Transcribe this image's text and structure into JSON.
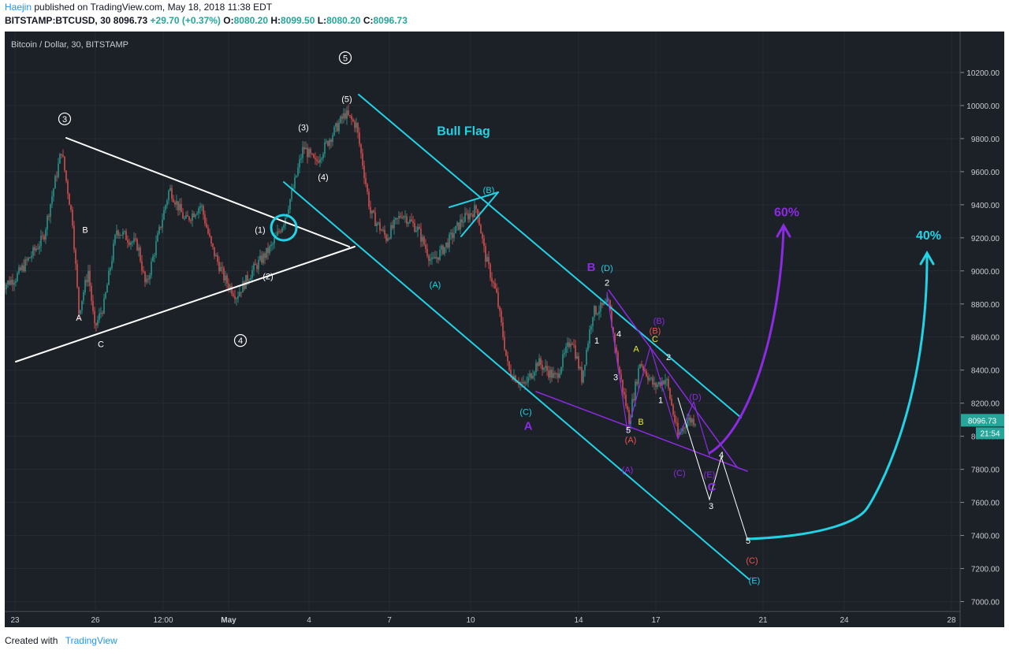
{
  "header": {
    "author": "Haejin",
    "published": "published on TradingView.com, May 18, 2018 11:38 EDT",
    "symbol": "BITSTAMP:BTCUSD, 30",
    "last": "8096.73",
    "change": "+29.70 (+0.37%)",
    "open": "8080.20",
    "high": "8099.50",
    "low": "8080.20",
    "close": "8096.73"
  },
  "footer": {
    "created_with": "Created with",
    "brand": "TradingView"
  },
  "colors": {
    "background": "#1c2027",
    "cyan": "#22d3e6",
    "purple": "#8b2be2",
    "up": "#26a69a",
    "down": "#ef5350"
  },
  "chart_data": {
    "type": "candlestick",
    "title": "Bitcoin / Dollar, 30, BITSTAMP",
    "ylim": [
      6950,
      10400
    ],
    "y_ticks": [
      7000,
      7200,
      7400,
      7600,
      7800,
      8000,
      8200,
      8400,
      8600,
      8800,
      9000,
      9200,
      9400,
      9600,
      9800,
      10000,
      10200
    ],
    "x_tick_labels": [
      "23",
      "26",
      "12:00",
      "May",
      "4",
      "7",
      "10",
      "14",
      "17",
      "21",
      "24",
      "28"
    ],
    "last_price_label": "8096.73",
    "countdown_label": "21:54",
    "price_path": [
      [
        0,
        8900
      ],
      [
        20,
        8960
      ],
      [
        55,
        9200
      ],
      [
        78,
        9730
      ],
      [
        92,
        9300
      ],
      [
        100,
        8750
      ],
      [
        112,
        9000
      ],
      [
        120,
        8650
      ],
      [
        132,
        8800
      ],
      [
        148,
        9250
      ],
      [
        175,
        9150
      ],
      [
        185,
        8900
      ],
      [
        215,
        9500
      ],
      [
        235,
        9300
      ],
      [
        255,
        9400
      ],
      [
        268,
        9150
      ],
      [
        285,
        8950
      ],
      [
        300,
        8850
      ],
      [
        320,
        9000
      ],
      [
        345,
        9150
      ],
      [
        360,
        9300
      ],
      [
        372,
        9500
      ],
      [
        385,
        9750
      ],
      [
        400,
        9650
      ],
      [
        418,
        9800
      ],
      [
        438,
        9950
      ],
      [
        452,
        9880
      ],
      [
        460,
        9650
      ],
      [
        470,
        9350
      ],
      [
        490,
        9200
      ],
      [
        510,
        9350
      ],
      [
        530,
        9250
      ],
      [
        548,
        9050
      ],
      [
        565,
        9150
      ],
      [
        585,
        9300
      ],
      [
        605,
        9380
      ],
      [
        615,
        9100
      ],
      [
        630,
        8850
      ],
      [
        645,
        8400
      ],
      [
        665,
        8300
      ],
      [
        682,
        8450
      ],
      [
        705,
        8350
      ],
      [
        725,
        8600
      ],
      [
        738,
        8350
      ],
      [
        752,
        8750
      ],
      [
        772,
        8800
      ],
      [
        785,
        8400
      ],
      [
        798,
        8100
      ],
      [
        812,
        8450
      ],
      [
        830,
        8300
      ],
      [
        845,
        8350
      ],
      [
        860,
        8000
      ],
      [
        872,
        8100
      ],
      [
        882,
        8096
      ]
    ],
    "annotations": [
      {
        "text": "③",
        "x": 82,
        "y": 9900,
        "color": "#ffffff",
        "circled": true
      },
      {
        "text": "⑤",
        "x": 438,
        "y": 10270,
        "color": "#ffffff",
        "circled": true
      },
      {
        "text": "④",
        "x": 305,
        "y": 8560,
        "color": "#ffffff",
        "circled": true
      },
      {
        "text": "(5)",
        "x": 440,
        "y": 10020,
        "color": "#ffffff"
      },
      {
        "text": "(3)",
        "x": 385,
        "y": 9850,
        "color": "#ffffff"
      },
      {
        "text": "(4)",
        "x": 410,
        "y": 9550,
        "color": "#ffffff"
      },
      {
        "text": "(1)",
        "x": 330,
        "y": 9230,
        "color": "#ffffff"
      },
      {
        "text": "(2)",
        "x": 340,
        "y": 8950,
        "color": "#ffffff"
      },
      {
        "text": "B",
        "x": 108,
        "y": 9230,
        "color": "#ffffff"
      },
      {
        "text": "A",
        "x": 100,
        "y": 8700,
        "color": "#ffffff"
      },
      {
        "text": "C",
        "x": 128,
        "y": 8540,
        "color": "#ffffff"
      },
      {
        "text": "Bull Flag",
        "x": 588,
        "y": 9820,
        "color": "#22d3e6",
        "bold": true
      },
      {
        "text": "(B)",
        "x": 620,
        "y": 9470,
        "color": "#22d3e6"
      },
      {
        "text": "(A)",
        "x": 552,
        "y": 8900,
        "color": "#22d3e6"
      },
      {
        "text": "(C)",
        "x": 667,
        "y": 8130,
        "color": "#22d3e6"
      },
      {
        "text": "A",
        "x": 670,
        "y": 8040,
        "color": "#8b2be2",
        "bold": true
      },
      {
        "text": "B",
        "x": 750,
        "y": 9000,
        "color": "#8b2be2",
        "bold": true
      },
      {
        "text": "(D)",
        "x": 770,
        "y": 9000,
        "color": "#22d3e6"
      },
      {
        "text": "60%",
        "x": 998,
        "y": 9330,
        "color": "#8b2be2",
        "bold": true
      },
      {
        "text": "40%",
        "x": 1178,
        "y": 9190,
        "color": "#22d3e6",
        "bold": true
      },
      {
        "text": "2",
        "x": 770,
        "y": 8910,
        "color": "#ffffff"
      },
      {
        "text": "1",
        "x": 757,
        "y": 8560,
        "color": "#ffffff"
      },
      {
        "text": "4",
        "x": 785,
        "y": 8600,
        "color": "#ffffff"
      },
      {
        "text": "3",
        "x": 781,
        "y": 8340,
        "color": "#ffffff"
      },
      {
        "text": "5",
        "x": 797,
        "y": 8020,
        "color": "#ffffff"
      },
      {
        "text": "(A)",
        "x": 800,
        "y": 7960,
        "color": "#ef5350"
      },
      {
        "text": "(A)",
        "x": 796,
        "y": 7780,
        "color": "#8b2be2"
      },
      {
        "text": "A",
        "x": 807,
        "y": 8510,
        "color": "#e8e83a"
      },
      {
        "text": "B",
        "x": 813,
        "y": 8070,
        "color": "#e8e83a"
      },
      {
        "text": "C",
        "x": 831,
        "y": 8570,
        "color": "#e8e83a"
      },
      {
        "text": "(B)",
        "x": 836,
        "y": 8680,
        "color": "#8b2be2"
      },
      {
        "text": "(B)",
        "x": 831,
        "y": 8620,
        "color": "#ef5350"
      },
      {
        "text": "2",
        "x": 848,
        "y": 8460,
        "color": "#ffffff"
      },
      {
        "text": "1",
        "x": 838,
        "y": 8200,
        "color": "#ffffff"
      },
      {
        "text": "(D)",
        "x": 882,
        "y": 8220,
        "color": "#8b2be2"
      },
      {
        "text": "(C)",
        "x": 862,
        "y": 7760,
        "color": "#8b2be2"
      },
      {
        "text": "4",
        "x": 915,
        "y": 7870,
        "color": "#ffffff"
      },
      {
        "text": "(E)",
        "x": 900,
        "y": 7750,
        "color": "#8b2be2"
      },
      {
        "text": "C",
        "x": 903,
        "y": 7670,
        "color": "#8b2be2",
        "bold": true
      },
      {
        "text": "3",
        "x": 902,
        "y": 7560,
        "color": "#ffffff"
      },
      {
        "text": "5",
        "x": 949,
        "y": 7350,
        "color": "#ffffff"
      },
      {
        "text": "(C)",
        "x": 954,
        "y": 7230,
        "color": "#ef5350"
      },
      {
        "text": "(E)",
        "x": 957,
        "y": 7110,
        "color": "#22d3e6"
      }
    ]
  }
}
